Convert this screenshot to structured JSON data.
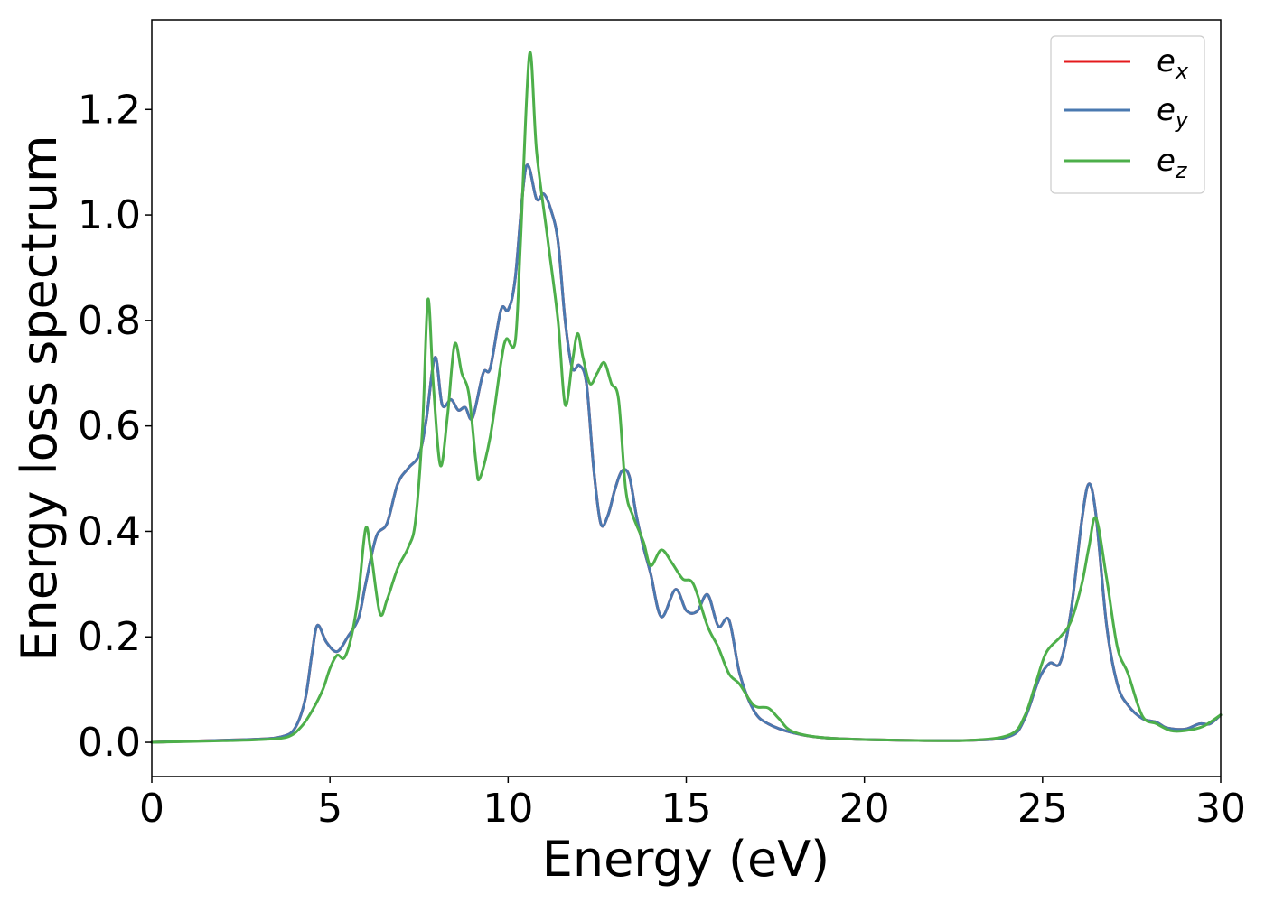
{
  "chart_data": {
    "type": "line",
    "xlabel": "Energy (eV)",
    "ylabel": "Energy loss spectrum",
    "xlim": [
      0,
      30
    ],
    "ylim": [
      -0.065,
      1.37
    ],
    "xticks": [
      0,
      5,
      10,
      15,
      20,
      25,
      30
    ],
    "yticks": [
      0.0,
      0.2,
      0.4,
      0.6,
      0.8,
      1.0,
      1.2
    ],
    "xtick_labels": [
      "0",
      "5",
      "10",
      "15",
      "20",
      "25",
      "30"
    ],
    "ytick_labels": [
      "0.0",
      "0.2",
      "0.4",
      "0.6",
      "0.8",
      "1.0",
      "1.2"
    ],
    "grid": false,
    "legend_position": "top-right",
    "series": [
      {
        "name": "e_x",
        "legend_base": "e",
        "legend_sub": "x",
        "color": "#e41a1c",
        "points": [
          [
            0,
            0
          ],
          [
            2,
            0.004
          ],
          [
            3,
            0.006
          ],
          [
            3.6,
            0.01
          ],
          [
            4,
            0.025
          ],
          [
            4.3,
            0.08
          ],
          [
            4.5,
            0.17
          ],
          [
            4.65,
            0.222
          ],
          [
            4.9,
            0.19
          ],
          [
            5.2,
            0.172
          ],
          [
            5.5,
            0.2
          ],
          [
            5.8,
            0.235
          ],
          [
            6.0,
            0.3
          ],
          [
            6.3,
            0.39
          ],
          [
            6.6,
            0.415
          ],
          [
            6.9,
            0.49
          ],
          [
            7.2,
            0.52
          ],
          [
            7.5,
            0.545
          ],
          [
            7.7,
            0.61
          ],
          [
            7.95,
            0.73
          ],
          [
            8.15,
            0.64
          ],
          [
            8.4,
            0.65
          ],
          [
            8.6,
            0.63
          ],
          [
            8.8,
            0.635
          ],
          [
            9.0,
            0.615
          ],
          [
            9.3,
            0.7
          ],
          [
            9.5,
            0.71
          ],
          [
            9.8,
            0.82
          ],
          [
            10.0,
            0.82
          ],
          [
            10.2,
            0.88
          ],
          [
            10.5,
            1.09
          ],
          [
            10.8,
            1.03
          ],
          [
            11.0,
            1.04
          ],
          [
            11.2,
            1.01
          ],
          [
            11.4,
            0.95
          ],
          [
            11.6,
            0.8
          ],
          [
            11.8,
            0.71
          ],
          [
            12.0,
            0.715
          ],
          [
            12.2,
            0.68
          ],
          [
            12.4,
            0.52
          ],
          [
            12.6,
            0.415
          ],
          [
            12.8,
            0.43
          ],
          [
            13.0,
            0.48
          ],
          [
            13.2,
            0.515
          ],
          [
            13.4,
            0.505
          ],
          [
            13.6,
            0.43
          ],
          [
            13.8,
            0.37
          ],
          [
            14.0,
            0.32
          ],
          [
            14.3,
            0.238
          ],
          [
            14.7,
            0.29
          ],
          [
            15.0,
            0.25
          ],
          [
            15.3,
            0.248
          ],
          [
            15.6,
            0.28
          ],
          [
            15.9,
            0.22
          ],
          [
            16.2,
            0.232
          ],
          [
            16.5,
            0.13
          ],
          [
            16.9,
            0.06
          ],
          [
            17.3,
            0.035
          ],
          [
            18.0,
            0.018
          ],
          [
            19.0,
            0.008
          ],
          [
            21,
            0.004
          ],
          [
            23,
            0.004
          ],
          [
            24.1,
            0.012
          ],
          [
            24.5,
            0.045
          ],
          [
            24.9,
            0.12
          ],
          [
            25.2,
            0.15
          ],
          [
            25.5,
            0.152
          ],
          [
            25.8,
            0.25
          ],
          [
            26.1,
            0.42
          ],
          [
            26.3,
            0.49
          ],
          [
            26.5,
            0.43
          ],
          [
            26.8,
            0.22
          ],
          [
            27.1,
            0.11
          ],
          [
            27.4,
            0.07
          ],
          [
            27.8,
            0.045
          ],
          [
            28.2,
            0.038
          ],
          [
            28.5,
            0.027
          ],
          [
            29.0,
            0.025
          ],
          [
            29.4,
            0.035
          ],
          [
            29.7,
            0.035
          ],
          [
            30,
            0.052
          ]
        ]
      },
      {
        "name": "e_y",
        "legend_base": "e",
        "legend_sub": "y",
        "color": "#4a79b0",
        "points": [
          [
            0,
            0
          ],
          [
            2,
            0.004
          ],
          [
            3,
            0.006
          ],
          [
            3.6,
            0.01
          ],
          [
            4,
            0.025
          ],
          [
            4.3,
            0.08
          ],
          [
            4.5,
            0.17
          ],
          [
            4.65,
            0.222
          ],
          [
            4.9,
            0.19
          ],
          [
            5.2,
            0.172
          ],
          [
            5.5,
            0.2
          ],
          [
            5.8,
            0.235
          ],
          [
            6.0,
            0.3
          ],
          [
            6.3,
            0.39
          ],
          [
            6.6,
            0.415
          ],
          [
            6.9,
            0.49
          ],
          [
            7.2,
            0.52
          ],
          [
            7.5,
            0.545
          ],
          [
            7.7,
            0.61
          ],
          [
            7.95,
            0.73
          ],
          [
            8.15,
            0.64
          ],
          [
            8.4,
            0.65
          ],
          [
            8.6,
            0.63
          ],
          [
            8.8,
            0.635
          ],
          [
            9.0,
            0.615
          ],
          [
            9.3,
            0.7
          ],
          [
            9.5,
            0.71
          ],
          [
            9.8,
            0.82
          ],
          [
            10.0,
            0.82
          ],
          [
            10.2,
            0.88
          ],
          [
            10.5,
            1.09
          ],
          [
            10.8,
            1.03
          ],
          [
            11.0,
            1.04
          ],
          [
            11.2,
            1.01
          ],
          [
            11.4,
            0.95
          ],
          [
            11.6,
            0.8
          ],
          [
            11.8,
            0.71
          ],
          [
            12.0,
            0.715
          ],
          [
            12.2,
            0.68
          ],
          [
            12.4,
            0.52
          ],
          [
            12.6,
            0.415
          ],
          [
            12.8,
            0.43
          ],
          [
            13.0,
            0.48
          ],
          [
            13.2,
            0.515
          ],
          [
            13.4,
            0.505
          ],
          [
            13.6,
            0.43
          ],
          [
            13.8,
            0.37
          ],
          [
            14.0,
            0.32
          ],
          [
            14.3,
            0.238
          ],
          [
            14.7,
            0.29
          ],
          [
            15.0,
            0.25
          ],
          [
            15.3,
            0.248
          ],
          [
            15.6,
            0.28
          ],
          [
            15.9,
            0.22
          ],
          [
            16.2,
            0.232
          ],
          [
            16.5,
            0.13
          ],
          [
            16.9,
            0.06
          ],
          [
            17.3,
            0.035
          ],
          [
            18.0,
            0.018
          ],
          [
            19.0,
            0.008
          ],
          [
            21,
            0.004
          ],
          [
            23,
            0.004
          ],
          [
            24.1,
            0.012
          ],
          [
            24.5,
            0.045
          ],
          [
            24.9,
            0.12
          ],
          [
            25.2,
            0.15
          ],
          [
            25.5,
            0.152
          ],
          [
            25.8,
            0.25
          ],
          [
            26.1,
            0.42
          ],
          [
            26.3,
            0.49
          ],
          [
            26.5,
            0.43
          ],
          [
            26.8,
            0.22
          ],
          [
            27.1,
            0.11
          ],
          [
            27.4,
            0.07
          ],
          [
            27.8,
            0.045
          ],
          [
            28.2,
            0.038
          ],
          [
            28.5,
            0.027
          ],
          [
            29.0,
            0.025
          ],
          [
            29.4,
            0.035
          ],
          [
            29.7,
            0.035
          ],
          [
            30,
            0.052
          ]
        ]
      },
      {
        "name": "e_z",
        "legend_base": "e",
        "legend_sub": "z",
        "color": "#4daf4a",
        "points": [
          [
            0,
            0
          ],
          [
            2,
            0.003
          ],
          [
            3,
            0.005
          ],
          [
            3.8,
            0.01
          ],
          [
            4.2,
            0.03
          ],
          [
            4.5,
            0.06
          ],
          [
            4.8,
            0.1
          ],
          [
            5.0,
            0.14
          ],
          [
            5.2,
            0.165
          ],
          [
            5.4,
            0.16
          ],
          [
            5.6,
            0.2
          ],
          [
            5.8,
            0.28
          ],
          [
            6.0,
            0.405
          ],
          [
            6.15,
            0.36
          ],
          [
            6.4,
            0.245
          ],
          [
            6.6,
            0.27
          ],
          [
            6.9,
            0.33
          ],
          [
            7.2,
            0.37
          ],
          [
            7.4,
            0.42
          ],
          [
            7.6,
            0.6
          ],
          [
            7.75,
            0.84
          ],
          [
            7.9,
            0.68
          ],
          [
            8.1,
            0.525
          ],
          [
            8.3,
            0.62
          ],
          [
            8.5,
            0.755
          ],
          [
            8.7,
            0.7
          ],
          [
            8.9,
            0.66
          ],
          [
            9.1,
            0.53
          ],
          [
            9.2,
            0.5
          ],
          [
            9.5,
            0.58
          ],
          [
            9.8,
            0.72
          ],
          [
            9.95,
            0.765
          ],
          [
            10.2,
            0.76
          ],
          [
            10.35,
            0.95
          ],
          [
            10.6,
            1.305
          ],
          [
            10.8,
            1.12
          ],
          [
            11.1,
            0.96
          ],
          [
            11.4,
            0.8
          ],
          [
            11.6,
            0.64
          ],
          [
            11.8,
            0.72
          ],
          [
            11.95,
            0.775
          ],
          [
            12.1,
            0.73
          ],
          [
            12.3,
            0.68
          ],
          [
            12.5,
            0.7
          ],
          [
            12.7,
            0.72
          ],
          [
            12.9,
            0.68
          ],
          [
            13.1,
            0.65
          ],
          [
            13.3,
            0.48
          ],
          [
            13.5,
            0.43
          ],
          [
            13.8,
            0.38
          ],
          [
            14.0,
            0.335
          ],
          [
            14.3,
            0.365
          ],
          [
            14.6,
            0.34
          ],
          [
            14.9,
            0.31
          ],
          [
            15.2,
            0.3
          ],
          [
            15.6,
            0.22
          ],
          [
            15.9,
            0.18
          ],
          [
            16.2,
            0.13
          ],
          [
            16.5,
            0.11
          ],
          [
            16.9,
            0.07
          ],
          [
            17.3,
            0.065
          ],
          [
            17.6,
            0.045
          ],
          [
            18.0,
            0.02
          ],
          [
            19.0,
            0.008
          ],
          [
            21,
            0.004
          ],
          [
            23,
            0.004
          ],
          [
            24.1,
            0.015
          ],
          [
            24.5,
            0.05
          ],
          [
            24.8,
            0.11
          ],
          [
            25.1,
            0.17
          ],
          [
            25.5,
            0.2
          ],
          [
            25.8,
            0.23
          ],
          [
            26.1,
            0.3
          ],
          [
            26.3,
            0.37
          ],
          [
            26.5,
            0.425
          ],
          [
            26.8,
            0.31
          ],
          [
            27.1,
            0.18
          ],
          [
            27.4,
            0.13
          ],
          [
            27.8,
            0.05
          ],
          [
            28.2,
            0.035
          ],
          [
            28.6,
            0.022
          ],
          [
            29.0,
            0.022
          ],
          [
            29.5,
            0.03
          ],
          [
            30,
            0.052
          ]
        ]
      }
    ]
  }
}
